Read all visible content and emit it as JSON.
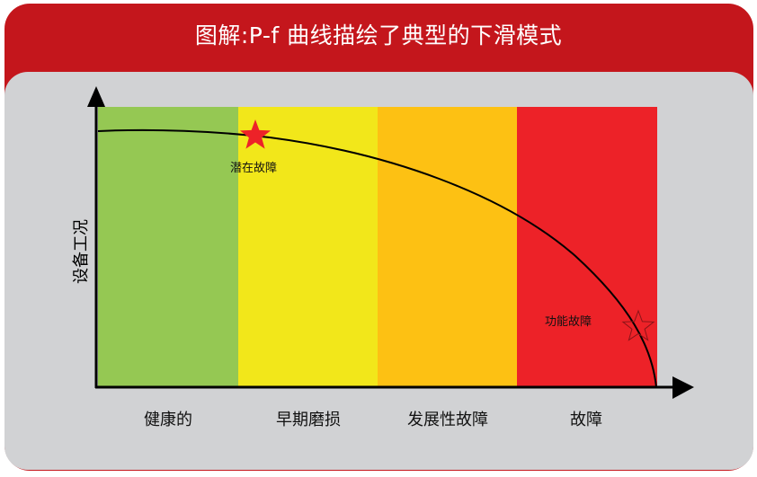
{
  "title": "图解:P-f 曲线描绘了典型的下滑模式",
  "y_axis_label": "设备工况",
  "stages": [
    {
      "label": "健康的",
      "color": "#95c853"
    },
    {
      "label": "早期磨损",
      "color": "#f2e71a"
    },
    {
      "label": "发展性故障",
      "color": "#fdc113"
    },
    {
      "label": "故障",
      "color": "#ed2228"
    }
  ],
  "points": {
    "potential_failure": {
      "label": "潜在故障",
      "icon": "star-filled-icon",
      "color": "#ed2228"
    },
    "functional_failure": {
      "label": "功能故障",
      "icon": "star-outline-icon"
    }
  },
  "colors": {
    "header": "#c4161c",
    "panel": "#d1d2d4"
  }
}
